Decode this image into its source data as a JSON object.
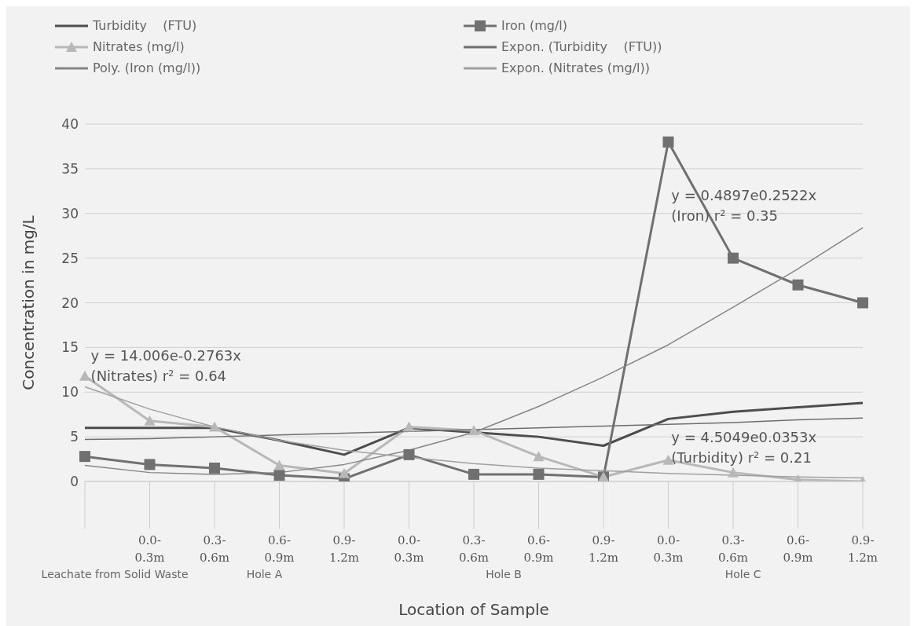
{
  "chart_data": {
    "type": "line",
    "xlabel": "Location of Sample",
    "ylabel": "Concentration in mg/L",
    "categories": [
      null,
      "0.0-0.3m",
      "0.3-0.6m",
      "0.6-0.9m",
      "0.9-1.2m",
      "0.0-0.3m",
      "0.3-0.6m",
      "0.6-0.9m",
      "0.9-1.2m",
      "0.0-0.3m",
      "0.3-0.6m",
      "0.6-0.9m",
      "0.9-1.2m"
    ],
    "series": [
      {
        "name": "Turbidity    (FTU)",
        "color": "#4d4d4d",
        "marker": "none",
        "values": [
          6,
          6,
          6,
          4.6,
          3,
          6,
          5.5,
          5,
          4,
          7,
          7.8,
          8.3,
          8.8
        ]
      },
      {
        "name": "Iron (mg/l)",
        "color": "#707070",
        "marker": "square",
        "values": [
          2.8,
          1.9,
          1.5,
          0.7,
          0.3,
          3,
          0.8,
          0.8,
          0.5,
          38,
          25,
          22,
          20
        ]
      },
      {
        "name": "Nitrates (mg/l)",
        "color": "#b8b8b8",
        "marker": "triangle",
        "values": [
          11.8,
          6.8,
          6.1,
          1.8,
          0.9,
          6.1,
          5.7,
          2.8,
          0.5,
          2.4,
          1,
          0.2,
          0
        ]
      },
      {
        "name": "Expon. (Turbidity    (FTU))",
        "color": "#6e6e6e",
        "marker": "none",
        "values": [
          4.7,
          4.8,
          5,
          5.2,
          5.4,
          5.6,
          5.8,
          6,
          6.2,
          6.4,
          6.6,
          6.9,
          7.1
        ]
      },
      {
        "name": "Poly. (Iron (mg/l))",
        "color": "#858585",
        "marker": "none",
        "values": [
          1.8,
          1,
          0.8,
          1,
          1.9,
          3.5,
          5.5,
          8.4,
          11.7,
          15.3,
          19.5,
          23.8,
          28.4
        ]
      },
      {
        "name": "Expon. (Nitrates (mg/l))",
        "color": "#a0a0a0",
        "marker": "none",
        "values": [
          10.6,
          8.1,
          6.1,
          4.6,
          3.5,
          2.7,
          2,
          1.5,
          1.2,
          0.9,
          0.7,
          0.5,
          0.4
        ]
      }
    ],
    "annotations": [
      "y = 14.006e-0.2763x\n(Nitrates)  r² = 0.64",
      "y = 0.4897e0.2522x\n(Iron)  r² = 0.35",
      "y = 4.5049e0.0353x\n(Turbidity)  r² = 0.21",
      "Leachate from Solid Waste",
      "Hole A",
      "Hole B",
      "Hole C"
    ],
    "ylim": [
      0,
      40
    ],
    "yticks": [
      0,
      5,
      10,
      15,
      20,
      25,
      30,
      35,
      40
    ],
    "grid": "y",
    "legend": "top",
    "line_style": "solid"
  }
}
